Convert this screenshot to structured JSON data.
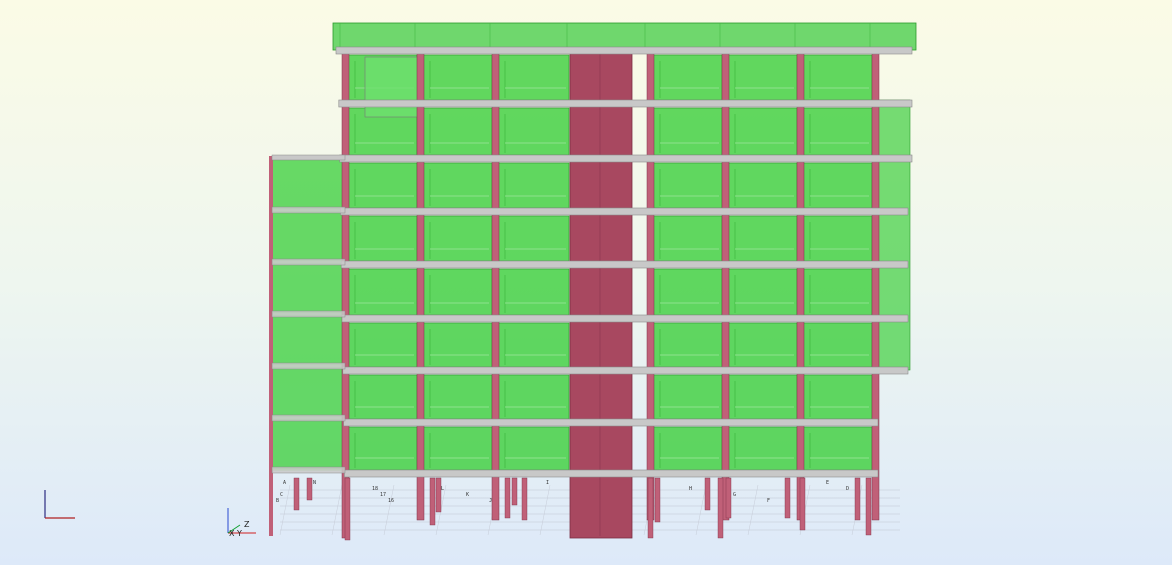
{
  "viewport": {
    "background_top": "#fbfbe6",
    "background_bottom": "#dde9f9"
  },
  "colors": {
    "wall_green": "#3fcf3f",
    "wall_edge": "#2a9a2a",
    "core_red": "#a84860",
    "column_red": "#c06078",
    "slab_grey": "#c8c8c8",
    "slab_edge": "#8a8a8a"
  },
  "model": {
    "storeys": 9,
    "bays": 7,
    "elements": [
      "slab",
      "column",
      "shear-wall",
      "core-wall",
      "glazing-panel"
    ]
  },
  "axes": {
    "main_gizmo_icon": "axis-gizmo-icon",
    "small_gizmo_labels": [
      "Z",
      "X",
      "Y"
    ]
  },
  "grid_labels": [
    "N",
    "L",
    "K",
    "J",
    "I",
    "H",
    "G",
    "F",
    "E",
    "D",
    "C",
    "B",
    "A",
    "18",
    "17",
    "16"
  ]
}
